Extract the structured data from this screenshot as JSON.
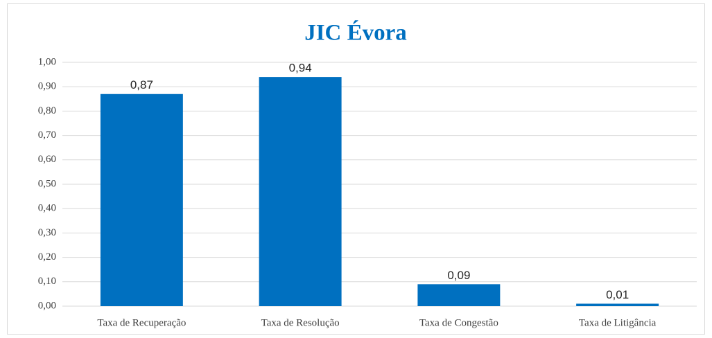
{
  "chart_data": {
    "type": "bar",
    "title": "JIC Évora",
    "categories": [
      "Taxa de Recuperação",
      "Taxa de Resolução",
      "Taxa de Congestão",
      "Taxa de Litigância"
    ],
    "values": [
      0.87,
      0.94,
      0.09,
      0.01
    ],
    "value_labels": [
      "0,87",
      "0,94",
      "0,09",
      "0,01"
    ],
    "color": "#0070c0",
    "ylim": [
      0,
      1
    ],
    "yticks": [
      {
        "value": 0,
        "label": "0,00"
      },
      {
        "value": 0.1,
        "label": "0,10"
      },
      {
        "value": 0.2,
        "label": "0,20"
      },
      {
        "value": 0.3,
        "label": "0,30"
      },
      {
        "value": 0.4,
        "label": "0,40"
      },
      {
        "value": 0.5,
        "label": "0,50"
      },
      {
        "value": 0.6,
        "label": "0,60"
      },
      {
        "value": 0.7,
        "label": "0,70"
      },
      {
        "value": 0.8,
        "label": "0,80"
      },
      {
        "value": 0.9,
        "label": "0,90"
      },
      {
        "value": 1,
        "label": "1,00"
      }
    ],
    "grid": true
  }
}
